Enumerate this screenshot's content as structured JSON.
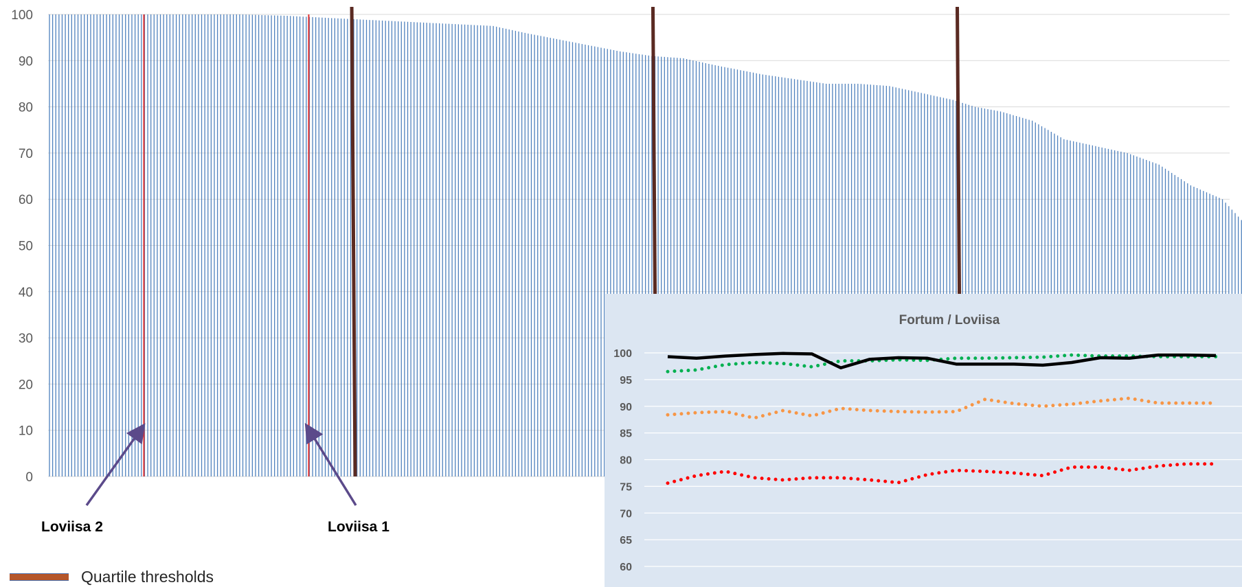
{
  "chart_data": [
    {
      "type": "bar",
      "title": "",
      "xlabel": "",
      "ylabel": "",
      "ylim": [
        0,
        100
      ],
      "yticks": [
        0,
        10,
        20,
        30,
        40,
        50,
        60,
        70,
        80,
        90,
        100
      ],
      "grid": true,
      "bar_color": "#4f81bd",
      "n_bars": 382,
      "sorted_value_profile": [
        [
          0,
          100
        ],
        [
          30,
          100
        ],
        [
          60,
          100
        ],
        [
          75,
          99.7
        ],
        [
          95,
          99
        ],
        [
          110,
          98.5
        ],
        [
          125,
          98
        ],
        [
          140,
          97.5
        ],
        [
          150,
          96
        ],
        [
          165,
          94
        ],
        [
          180,
          92
        ],
        [
          190,
          91
        ],
        [
          200,
          90.5
        ],
        [
          210,
          89
        ],
        [
          225,
          87
        ],
        [
          235,
          86
        ],
        [
          245,
          85
        ],
        [
          255,
          85
        ],
        [
          265,
          84.5
        ],
        [
          275,
          83
        ],
        [
          285,
          81.5
        ],
        [
          292,
          80
        ],
        [
          300,
          79
        ],
        [
          310,
          77
        ],
        [
          320,
          73
        ],
        [
          330,
          71.5
        ],
        [
          340,
          70
        ],
        [
          350,
          67.5
        ],
        [
          360,
          63
        ],
        [
          370,
          60
        ],
        [
          374,
          57
        ],
        [
          378,
          54
        ],
        [
          380,
          50
        ],
        [
          382,
          45
        ]
      ],
      "highlighted_units": [
        {
          "name": "Loviisa 2",
          "rank": 30,
          "color": "#e03030"
        },
        {
          "name": "Loviisa 1",
          "rank": 82,
          "color": "#e03030"
        }
      ],
      "quartile_threshold_ranks": [
        96,
        191,
        287
      ],
      "quartile_color": "#5a2a22",
      "legend": {
        "label": "Quartile thresholds",
        "color": "#b5562a",
        "placement": "bottom-left"
      },
      "annotations": [
        "Loviisa 2",
        "Loviisa 1"
      ]
    },
    {
      "type": "line",
      "title": "Fortum / Loviisa",
      "xlabel": "",
      "ylabel": "",
      "ylim": [
        60,
        100
      ],
      "yticks": [
        60,
        65,
        70,
        75,
        80,
        85,
        90,
        95,
        100
      ],
      "grid": true,
      "series": [
        {
          "color": "#000000",
          "style": "solid",
          "values": [
            99.3,
            99.0,
            99.4,
            99.7,
            99.9,
            99.8,
            97.2,
            98.8,
            99.1,
            99.0,
            97.9,
            97.9,
            97.9,
            97.7,
            98.2,
            99.1,
            99.0,
            99.6,
            99.6,
            99.5
          ]
        },
        {
          "color": "#00b050",
          "style": "dotted",
          "values": [
            96.5,
            96.8,
            97.8,
            98.2,
            98.0,
            97.4,
            98.5,
            98.5,
            98.7,
            98.6,
            99.0,
            99.0,
            99.1,
            99.2,
            99.6,
            99.4,
            99.4,
            99.3,
            99.3,
            99.3
          ]
        },
        {
          "color": "#f79646",
          "style": "dotted",
          "values": [
            88.4,
            88.8,
            89.0,
            87.8,
            89.2,
            88.2,
            89.6,
            89.2,
            89.0,
            88.9,
            89.0,
            91.3,
            90.5,
            90.0,
            90.4,
            91.0,
            91.5,
            90.6,
            90.6,
            90.6
          ]
        },
        {
          "color": "#ff0000",
          "style": "dotted",
          "values": [
            75.6,
            77.0,
            77.8,
            76.6,
            76.2,
            76.6,
            76.6,
            76.2,
            75.7,
            77.2,
            78.0,
            77.8,
            77.5,
            77.0,
            78.6,
            78.6,
            78.0,
            78.8,
            79.2,
            79.2
          ]
        }
      ]
    }
  ]
}
